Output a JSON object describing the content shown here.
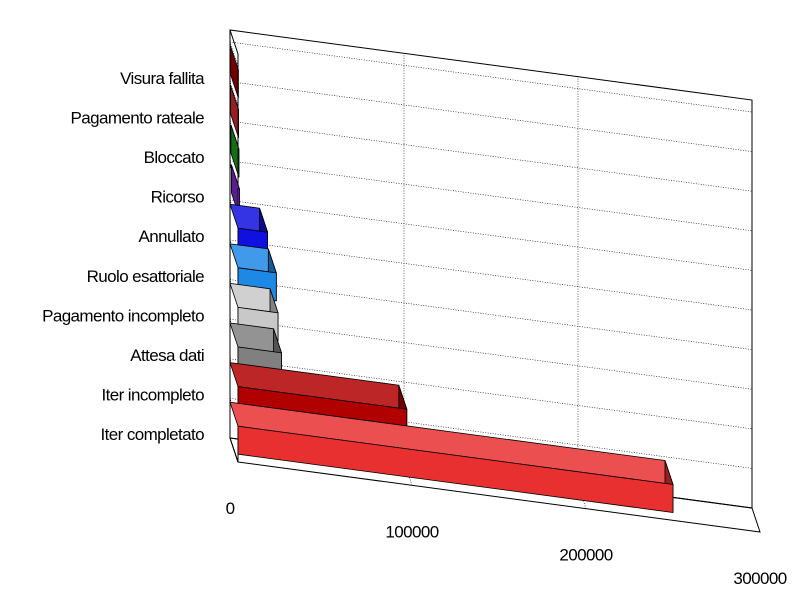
{
  "chart_data": {
    "type": "bar",
    "orientation": "horizontal",
    "style": "3d",
    "categories": [
      "Visura fallita",
      "Pagamento rateale",
      "Bloccato",
      "Ricorso",
      "Annullato",
      "Ruolo esattoriale",
      "Pagamento incompleto",
      "Attesa dati",
      "Iter incompleto",
      "Iter completato"
    ],
    "values": [
      200,
      300,
      500,
      800,
      17000,
      22000,
      23000,
      25000,
      97000,
      250000
    ],
    "colors": [
      "#b00000",
      "#e83030",
      "#1faa1f",
      "#8a2be2",
      "#1010e0",
      "#1e88e5",
      "#c8c8c8",
      "#808080",
      "#b00000",
      "#e83030"
    ],
    "x_tick_labels": [
      "0",
      "100000",
      "200000",
      "300000"
    ],
    "xlim": [
      0,
      300000
    ],
    "grid": true,
    "title": "",
    "xlabel": "",
    "ylabel": ""
  }
}
